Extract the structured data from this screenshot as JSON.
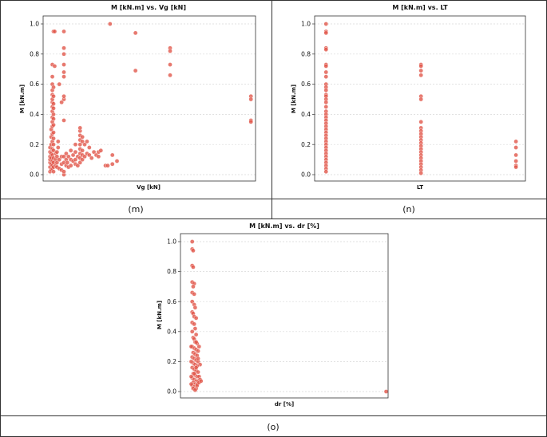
{
  "captions": {
    "m": "(m)",
    "n": "(n)",
    "o": "(o)"
  },
  "style": {
    "point_color": "#e05346",
    "grid_color": "#d9d9d9",
    "border_color": "#333333"
  },
  "chart_data": [
    {
      "id": "m",
      "type": "scatter",
      "title": "M [kN.m] vs. Vg [kN]",
      "xlabel": "Vg [kN]",
      "ylabel": "M [kN.m]",
      "xticks_shown": false,
      "ylim": [
        0,
        1.0
      ],
      "yticks": [
        "0.0",
        "0.2",
        "0.4",
        "0.6",
        "0.8",
        "1.0"
      ],
      "grid": "horizontal",
      "x_scale": "arbitrary (no tick labels shown)",
      "points": [
        [
          0.01,
          0.02
        ],
        [
          0.01,
          0.05
        ],
        [
          0.01,
          0.08
        ],
        [
          0.01,
          0.1
        ],
        [
          0.01,
          0.12
        ],
        [
          0.01,
          0.15
        ],
        [
          0.01,
          0.18
        ],
        [
          0.015,
          0.03
        ],
        [
          0.015,
          0.07
        ],
        [
          0.015,
          0.11
        ],
        [
          0.015,
          0.14
        ],
        [
          0.015,
          0.2
        ],
        [
          0.015,
          0.25
        ],
        [
          0.015,
          0.3
        ],
        [
          0.02,
          0.04
        ],
        [
          0.02,
          0.06
        ],
        [
          0.02,
          0.09
        ],
        [
          0.02,
          0.13
        ],
        [
          0.02,
          0.17
        ],
        [
          0.02,
          0.22
        ],
        [
          0.02,
          0.27
        ],
        [
          0.02,
          0.32
        ],
        [
          0.02,
          0.35
        ],
        [
          0.02,
          0.38
        ],
        [
          0.02,
          0.42
        ],
        [
          0.02,
          0.45
        ],
        [
          0.02,
          0.48
        ],
        [
          0.02,
          0.5
        ],
        [
          0.02,
          0.53
        ],
        [
          0.02,
          0.56
        ],
        [
          0.02,
          0.6
        ],
        [
          0.02,
          0.65
        ],
        [
          0.025,
          0.02
        ],
        [
          0.025,
          0.05
        ],
        [
          0.025,
          0.08
        ],
        [
          0.025,
          0.11
        ],
        [
          0.025,
          0.16
        ],
        [
          0.025,
          0.2
        ],
        [
          0.025,
          0.24
        ],
        [
          0.025,
          0.28
        ],
        [
          0.025,
          0.33
        ],
        [
          0.025,
          0.37
        ],
        [
          0.025,
          0.4
        ],
        [
          0.025,
          0.44
        ],
        [
          0.025,
          0.47
        ],
        [
          0.025,
          0.52
        ],
        [
          0.025,
          0.58
        ],
        [
          0.02,
          0.73
        ],
        [
          0.03,
          0.72
        ],
        [
          0.025,
          0.95
        ],
        [
          0.03,
          0.95
        ],
        [
          0.035,
          0.1
        ],
        [
          0.035,
          0.14
        ],
        [
          0.035,
          0.06
        ],
        [
          0.04,
          0.05
        ],
        [
          0.04,
          0.08
        ],
        [
          0.04,
          0.12
        ],
        [
          0.04,
          0.15
        ],
        [
          0.045,
          0.22
        ],
        [
          0.045,
          0.18
        ],
        [
          0.05,
          0.04
        ],
        [
          0.05,
          0.1
        ],
        [
          0.05,
          0.6
        ],
        [
          0.06,
          0.03
        ],
        [
          0.06,
          0.07
        ],
        [
          0.06,
          0.12
        ],
        [
          0.06,
          0.48
        ],
        [
          0.07,
          0.0
        ],
        [
          0.07,
          0.02
        ],
        [
          0.07,
          0.08
        ],
        [
          0.07,
          0.12
        ],
        [
          0.07,
          0.36
        ],
        [
          0.07,
          0.5
        ],
        [
          0.07,
          0.52
        ],
        [
          0.07,
          0.65
        ],
        [
          0.07,
          0.68
        ],
        [
          0.07,
          0.73
        ],
        [
          0.07,
          0.8
        ],
        [
          0.07,
          0.84
        ],
        [
          0.07,
          0.95
        ],
        [
          0.08,
          0.06
        ],
        [
          0.08,
          0.1
        ],
        [
          0.08,
          0.14
        ],
        [
          0.085,
          0.08
        ],
        [
          0.09,
          0.05
        ],
        [
          0.09,
          0.12
        ],
        [
          0.1,
          0.06
        ],
        [
          0.1,
          0.1
        ],
        [
          0.1,
          0.16
        ],
        [
          0.11,
          0.09
        ],
        [
          0.11,
          0.13
        ],
        [
          0.12,
          0.07
        ],
        [
          0.12,
          0.1
        ],
        [
          0.12,
          0.15
        ],
        [
          0.12,
          0.2
        ],
        [
          0.13,
          0.06
        ],
        [
          0.13,
          0.12
        ],
        [
          0.14,
          0.08
        ],
        [
          0.14,
          0.11
        ],
        [
          0.14,
          0.14
        ],
        [
          0.14,
          0.17
        ],
        [
          0.14,
          0.2
        ],
        [
          0.14,
          0.23
        ],
        [
          0.14,
          0.26
        ],
        [
          0.14,
          0.29
        ],
        [
          0.14,
          0.31
        ],
        [
          0.15,
          0.1
        ],
        [
          0.15,
          0.13
        ],
        [
          0.15,
          0.16
        ],
        [
          0.15,
          0.22
        ],
        [
          0.15,
          0.25
        ],
        [
          0.16,
          0.12
        ],
        [
          0.16,
          0.2
        ],
        [
          0.17,
          0.14
        ],
        [
          0.17,
          0.22
        ],
        [
          0.18,
          0.13
        ],
        [
          0.18,
          0.18
        ],
        [
          0.19,
          0.11
        ],
        [
          0.2,
          0.15
        ],
        [
          0.21,
          0.13
        ],
        [
          0.22,
          0.12
        ],
        [
          0.22,
          0.15
        ],
        [
          0.23,
          0.16
        ],
        [
          0.25,
          0.06
        ],
        [
          0.26,
          0.06
        ],
        [
          0.28,
          0.13
        ],
        [
          0.28,
          0.07
        ],
        [
          0.3,
          0.09
        ],
        [
          0.27,
          1.0
        ],
        [
          0.38,
          0.94
        ],
        [
          0.38,
          0.69
        ],
        [
          0.53,
          0.84
        ],
        [
          0.53,
          0.82
        ],
        [
          0.53,
          0.73
        ],
        [
          0.53,
          0.66
        ],
        [
          0.88,
          0.52
        ],
        [
          0.88,
          0.5
        ],
        [
          0.88,
          0.36
        ],
        [
          0.88,
          0.35
        ]
      ]
    },
    {
      "id": "n",
      "type": "scatter",
      "title": "M [kN.m] vs. LT",
      "xlabel": "LT",
      "ylabel": "M [kN.m]",
      "xticks_shown": false,
      "ylim": [
        0,
        1.0
      ],
      "yticks": [
        "0.0",
        "0.2",
        "0.4",
        "0.6",
        "0.8",
        "1.0"
      ],
      "grid": "horizontal",
      "x_scale": "categorical positions (no tick labels shown)",
      "points": [
        [
          0,
          1.0
        ],
        [
          0,
          0.95
        ],
        [
          0,
          0.94
        ],
        [
          0,
          0.84
        ],
        [
          0,
          0.83
        ],
        [
          0,
          0.73
        ],
        [
          0,
          0.72
        ],
        [
          0,
          0.68
        ],
        [
          0,
          0.65
        ],
        [
          0,
          0.6
        ],
        [
          0,
          0.58
        ],
        [
          0,
          0.56
        ],
        [
          0,
          0.53
        ],
        [
          0,
          0.52
        ],
        [
          0,
          0.5
        ],
        [
          0,
          0.48
        ],
        [
          0,
          0.45
        ],
        [
          0,
          0.42
        ],
        [
          0,
          0.4
        ],
        [
          0,
          0.38
        ],
        [
          0,
          0.36
        ],
        [
          0,
          0.34
        ],
        [
          0,
          0.32
        ],
        [
          0,
          0.3
        ],
        [
          0,
          0.28
        ],
        [
          0,
          0.26
        ],
        [
          0,
          0.24
        ],
        [
          0,
          0.22
        ],
        [
          0,
          0.2
        ],
        [
          0,
          0.18
        ],
        [
          0,
          0.16
        ],
        [
          0,
          0.14
        ],
        [
          0,
          0.12
        ],
        [
          0,
          0.1
        ],
        [
          0,
          0.08
        ],
        [
          0,
          0.06
        ],
        [
          0,
          0.04
        ],
        [
          0,
          0.02
        ],
        [
          1,
          0.73
        ],
        [
          1,
          0.72
        ],
        [
          1,
          0.69
        ],
        [
          1,
          0.66
        ],
        [
          1,
          0.52
        ],
        [
          1,
          0.5
        ],
        [
          1,
          0.35
        ],
        [
          1,
          0.31
        ],
        [
          1,
          0.29
        ],
        [
          1,
          0.27
        ],
        [
          1,
          0.25
        ],
        [
          1,
          0.23
        ],
        [
          1,
          0.21
        ],
        [
          1,
          0.19
        ],
        [
          1,
          0.17
        ],
        [
          1,
          0.15
        ],
        [
          1,
          0.13
        ],
        [
          1,
          0.11
        ],
        [
          1,
          0.09
        ],
        [
          1,
          0.07
        ],
        [
          1,
          0.05
        ],
        [
          1,
          0.03
        ],
        [
          1,
          0.01
        ],
        [
          2,
          0.22
        ],
        [
          2,
          0.18
        ],
        [
          2,
          0.13
        ],
        [
          2,
          0.09
        ],
        [
          2,
          0.06
        ],
        [
          2,
          0.05
        ]
      ]
    },
    {
      "id": "o",
      "type": "scatter",
      "title": "M [kN.m] vs. dr [%]",
      "xlabel": "dr [%]",
      "ylabel": "M [kN.m]",
      "xticks_shown": false,
      "ylim": [
        0,
        1.0
      ],
      "yticks": [
        "0.0",
        "0.2",
        "0.4",
        "0.6",
        "0.8",
        "1.0"
      ],
      "grid": "horizontal",
      "x_scale": "arbitrary (no tick labels shown)",
      "points": [
        [
          0.01,
          1.0
        ],
        [
          0.01,
          0.95
        ],
        [
          0.015,
          0.94
        ],
        [
          0.01,
          0.84
        ],
        [
          0.015,
          0.83
        ],
        [
          0.01,
          0.73
        ],
        [
          0.02,
          0.72
        ],
        [
          0.015,
          0.7
        ],
        [
          0.01,
          0.66
        ],
        [
          0.02,
          0.65
        ],
        [
          0.01,
          0.6
        ],
        [
          0.02,
          0.58
        ],
        [
          0.025,
          0.56
        ],
        [
          0.01,
          0.53
        ],
        [
          0.015,
          0.52
        ],
        [
          0.02,
          0.5
        ],
        [
          0.03,
          0.49
        ],
        [
          0.01,
          0.46
        ],
        [
          0.02,
          0.45
        ],
        [
          0.025,
          0.42
        ],
        [
          0.01,
          0.4
        ],
        [
          0.03,
          0.38
        ],
        [
          0.015,
          0.36
        ],
        [
          0.02,
          0.35
        ],
        [
          0.025,
          0.33
        ],
        [
          0.035,
          0.32
        ],
        [
          0.01,
          0.3
        ],
        [
          0.02,
          0.29
        ],
        [
          0.03,
          0.28
        ],
        [
          0.04,
          0.27
        ],
        [
          0.015,
          0.26
        ],
        [
          0.025,
          0.25
        ],
        [
          0.035,
          0.24
        ],
        [
          0.01,
          0.23
        ],
        [
          0.02,
          0.22
        ],
        [
          0.03,
          0.21
        ],
        [
          0.04,
          0.2
        ],
        [
          0.05,
          0.18
        ],
        [
          0.015,
          0.19
        ],
        [
          0.025,
          0.18
        ],
        [
          0.035,
          0.17
        ],
        [
          0.01,
          0.16
        ],
        [
          0.02,
          0.15
        ],
        [
          0.03,
          0.14
        ],
        [
          0.04,
          0.13
        ],
        [
          0.015,
          0.12
        ],
        [
          0.025,
          0.11
        ],
        [
          0.035,
          0.1
        ],
        [
          0.045,
          0.1
        ],
        [
          0.01,
          0.09
        ],
        [
          0.02,
          0.08
        ],
        [
          0.03,
          0.07
        ],
        [
          0.04,
          0.07
        ],
        [
          0.05,
          0.08
        ],
        [
          0.015,
          0.06
        ],
        [
          0.025,
          0.05
        ],
        [
          0.035,
          0.05
        ],
        [
          0.01,
          0.04
        ],
        [
          0.02,
          0.03
        ],
        [
          0.03,
          0.02
        ],
        [
          0.015,
          0.02
        ],
        [
          0.025,
          0.01
        ],
        [
          0.035,
          0.04
        ],
        [
          0.045,
          0.06
        ],
        [
          0.055,
          0.07
        ],
        [
          0.02,
          0.12
        ],
        [
          0.03,
          0.16
        ],
        [
          0.04,
          0.22
        ],
        [
          0.045,
          0.3
        ],
        [
          0.03,
          0.33
        ],
        [
          0.005,
          0.1
        ],
        [
          0.005,
          0.2
        ],
        [
          0.005,
          0.3
        ],
        [
          0.005,
          0.05
        ],
        [
          1.0,
          0.0
        ]
      ]
    }
  ]
}
